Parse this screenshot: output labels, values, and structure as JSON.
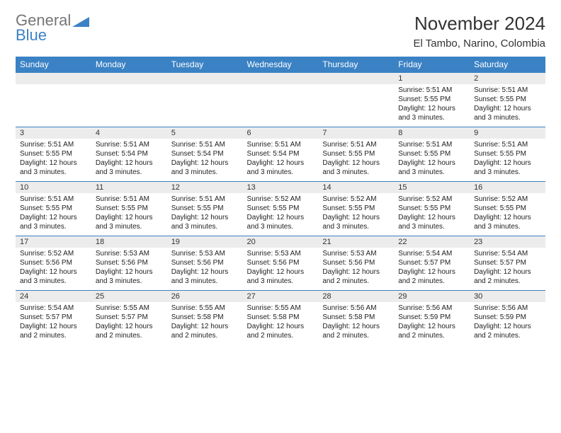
{
  "logo": {
    "general": "General",
    "blue": "Blue"
  },
  "title": "November 2024",
  "location": "El Tambo, Narino, Colombia",
  "colors": {
    "header_bg": "#3b82c4",
    "header_fg": "#ffffff",
    "daynum_bg": "#ececec",
    "border": "#3b82c4",
    "text": "#222222",
    "logo_gray": "#767676",
    "logo_blue": "#3b82c4"
  },
  "weekdays": [
    "Sunday",
    "Monday",
    "Tuesday",
    "Wednesday",
    "Thursday",
    "Friday",
    "Saturday"
  ],
  "weeks": [
    [
      {
        "n": "",
        "sunrise": "",
        "sunset": "",
        "daylight": ""
      },
      {
        "n": "",
        "sunrise": "",
        "sunset": "",
        "daylight": ""
      },
      {
        "n": "",
        "sunrise": "",
        "sunset": "",
        "daylight": ""
      },
      {
        "n": "",
        "sunrise": "",
        "sunset": "",
        "daylight": ""
      },
      {
        "n": "",
        "sunrise": "",
        "sunset": "",
        "daylight": ""
      },
      {
        "n": "1",
        "sunrise": "Sunrise: 5:51 AM",
        "sunset": "Sunset: 5:55 PM",
        "daylight": "Daylight: 12 hours and 3 minutes."
      },
      {
        "n": "2",
        "sunrise": "Sunrise: 5:51 AM",
        "sunset": "Sunset: 5:55 PM",
        "daylight": "Daylight: 12 hours and 3 minutes."
      }
    ],
    [
      {
        "n": "3",
        "sunrise": "Sunrise: 5:51 AM",
        "sunset": "Sunset: 5:55 PM",
        "daylight": "Daylight: 12 hours and 3 minutes."
      },
      {
        "n": "4",
        "sunrise": "Sunrise: 5:51 AM",
        "sunset": "Sunset: 5:54 PM",
        "daylight": "Daylight: 12 hours and 3 minutes."
      },
      {
        "n": "5",
        "sunrise": "Sunrise: 5:51 AM",
        "sunset": "Sunset: 5:54 PM",
        "daylight": "Daylight: 12 hours and 3 minutes."
      },
      {
        "n": "6",
        "sunrise": "Sunrise: 5:51 AM",
        "sunset": "Sunset: 5:54 PM",
        "daylight": "Daylight: 12 hours and 3 minutes."
      },
      {
        "n": "7",
        "sunrise": "Sunrise: 5:51 AM",
        "sunset": "Sunset: 5:55 PM",
        "daylight": "Daylight: 12 hours and 3 minutes."
      },
      {
        "n": "8",
        "sunrise": "Sunrise: 5:51 AM",
        "sunset": "Sunset: 5:55 PM",
        "daylight": "Daylight: 12 hours and 3 minutes."
      },
      {
        "n": "9",
        "sunrise": "Sunrise: 5:51 AM",
        "sunset": "Sunset: 5:55 PM",
        "daylight": "Daylight: 12 hours and 3 minutes."
      }
    ],
    [
      {
        "n": "10",
        "sunrise": "Sunrise: 5:51 AM",
        "sunset": "Sunset: 5:55 PM",
        "daylight": "Daylight: 12 hours and 3 minutes."
      },
      {
        "n": "11",
        "sunrise": "Sunrise: 5:51 AM",
        "sunset": "Sunset: 5:55 PM",
        "daylight": "Daylight: 12 hours and 3 minutes."
      },
      {
        "n": "12",
        "sunrise": "Sunrise: 5:51 AM",
        "sunset": "Sunset: 5:55 PM",
        "daylight": "Daylight: 12 hours and 3 minutes."
      },
      {
        "n": "13",
        "sunrise": "Sunrise: 5:52 AM",
        "sunset": "Sunset: 5:55 PM",
        "daylight": "Daylight: 12 hours and 3 minutes."
      },
      {
        "n": "14",
        "sunrise": "Sunrise: 5:52 AM",
        "sunset": "Sunset: 5:55 PM",
        "daylight": "Daylight: 12 hours and 3 minutes."
      },
      {
        "n": "15",
        "sunrise": "Sunrise: 5:52 AM",
        "sunset": "Sunset: 5:55 PM",
        "daylight": "Daylight: 12 hours and 3 minutes."
      },
      {
        "n": "16",
        "sunrise": "Sunrise: 5:52 AM",
        "sunset": "Sunset: 5:55 PM",
        "daylight": "Daylight: 12 hours and 3 minutes."
      }
    ],
    [
      {
        "n": "17",
        "sunrise": "Sunrise: 5:52 AM",
        "sunset": "Sunset: 5:56 PM",
        "daylight": "Daylight: 12 hours and 3 minutes."
      },
      {
        "n": "18",
        "sunrise": "Sunrise: 5:53 AM",
        "sunset": "Sunset: 5:56 PM",
        "daylight": "Daylight: 12 hours and 3 minutes."
      },
      {
        "n": "19",
        "sunrise": "Sunrise: 5:53 AM",
        "sunset": "Sunset: 5:56 PM",
        "daylight": "Daylight: 12 hours and 3 minutes."
      },
      {
        "n": "20",
        "sunrise": "Sunrise: 5:53 AM",
        "sunset": "Sunset: 5:56 PM",
        "daylight": "Daylight: 12 hours and 3 minutes."
      },
      {
        "n": "21",
        "sunrise": "Sunrise: 5:53 AM",
        "sunset": "Sunset: 5:56 PM",
        "daylight": "Daylight: 12 hours and 2 minutes."
      },
      {
        "n": "22",
        "sunrise": "Sunrise: 5:54 AM",
        "sunset": "Sunset: 5:57 PM",
        "daylight": "Daylight: 12 hours and 2 minutes."
      },
      {
        "n": "23",
        "sunrise": "Sunrise: 5:54 AM",
        "sunset": "Sunset: 5:57 PM",
        "daylight": "Daylight: 12 hours and 2 minutes."
      }
    ],
    [
      {
        "n": "24",
        "sunrise": "Sunrise: 5:54 AM",
        "sunset": "Sunset: 5:57 PM",
        "daylight": "Daylight: 12 hours and 2 minutes."
      },
      {
        "n": "25",
        "sunrise": "Sunrise: 5:55 AM",
        "sunset": "Sunset: 5:57 PM",
        "daylight": "Daylight: 12 hours and 2 minutes."
      },
      {
        "n": "26",
        "sunrise": "Sunrise: 5:55 AM",
        "sunset": "Sunset: 5:58 PM",
        "daylight": "Daylight: 12 hours and 2 minutes."
      },
      {
        "n": "27",
        "sunrise": "Sunrise: 5:55 AM",
        "sunset": "Sunset: 5:58 PM",
        "daylight": "Daylight: 12 hours and 2 minutes."
      },
      {
        "n": "28",
        "sunrise": "Sunrise: 5:56 AM",
        "sunset": "Sunset: 5:58 PM",
        "daylight": "Daylight: 12 hours and 2 minutes."
      },
      {
        "n": "29",
        "sunrise": "Sunrise: 5:56 AM",
        "sunset": "Sunset: 5:59 PM",
        "daylight": "Daylight: 12 hours and 2 minutes."
      },
      {
        "n": "30",
        "sunrise": "Sunrise: 5:56 AM",
        "sunset": "Sunset: 5:59 PM",
        "daylight": "Daylight: 12 hours and 2 minutes."
      }
    ]
  ]
}
